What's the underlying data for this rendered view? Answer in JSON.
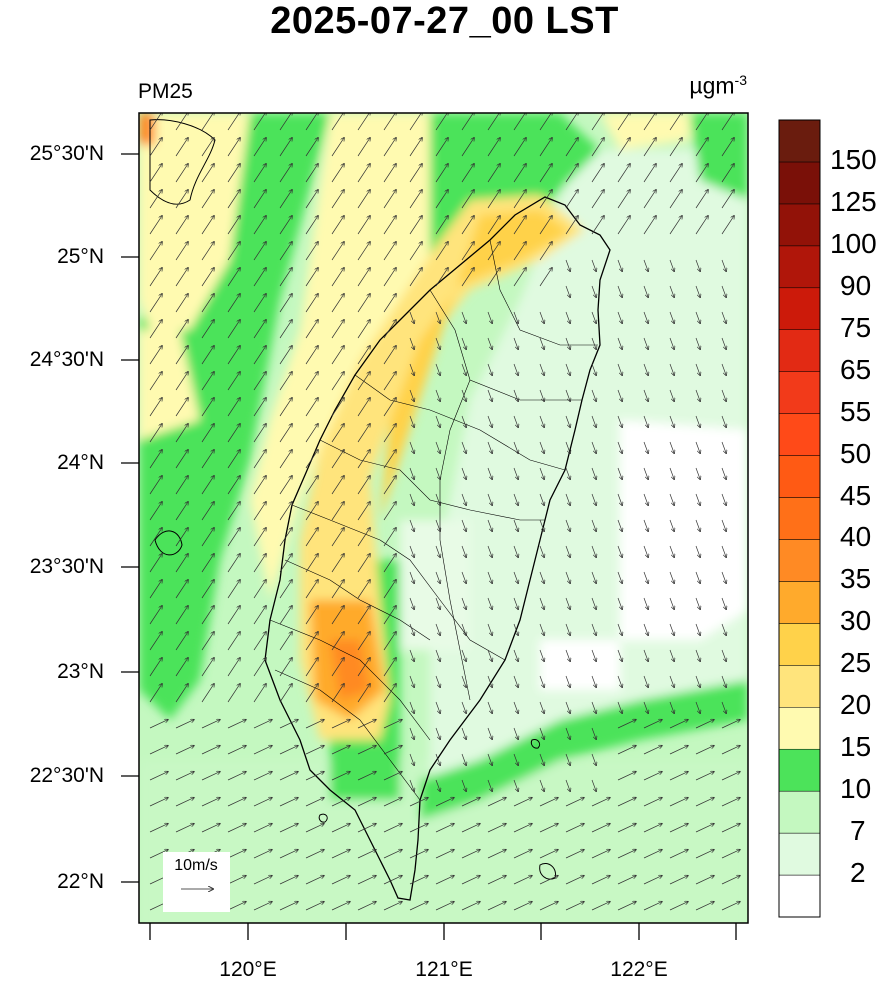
{
  "title": "2025-07-27_00 LST",
  "variable": "PM25",
  "unit": {
    "base": "µgm",
    "exp": "-3"
  },
  "reference_vector_label": "10m/s",
  "lat_labels": [
    "25°30'N",
    "25°N",
    "24°30'N",
    "24°N",
    "23°30'N",
    "23°N",
    "22°30'N",
    "22°N"
  ],
  "lon_labels": [
    "120°E",
    "121°E",
    "122°E"
  ],
  "colorbar": {
    "levels": [
      "2",
      "7",
      "10",
      "15",
      "20",
      "25",
      "30",
      "35",
      "40",
      "45",
      "50",
      "55",
      "65",
      "75",
      "90",
      "100",
      "125",
      "150"
    ],
    "colors": [
      "#ffffff",
      "#e0fae0",
      "#c4f8c0",
      "#4ce35a",
      "#fffab0",
      "#ffe47c",
      "#ffd24a",
      "#ffaa2c",
      "#ff8a24",
      "#ff7018",
      "#ff5a14",
      "#ff4a18",
      "#f23a1a",
      "#e22a14",
      "#cc1a0a",
      "#b0160a",
      "#921208",
      "#7a1008",
      "#6a1c0e"
    ]
  },
  "colors": {
    "land_outline": "#000000",
    "arrow": "#333333",
    "frame": "#000000"
  }
}
